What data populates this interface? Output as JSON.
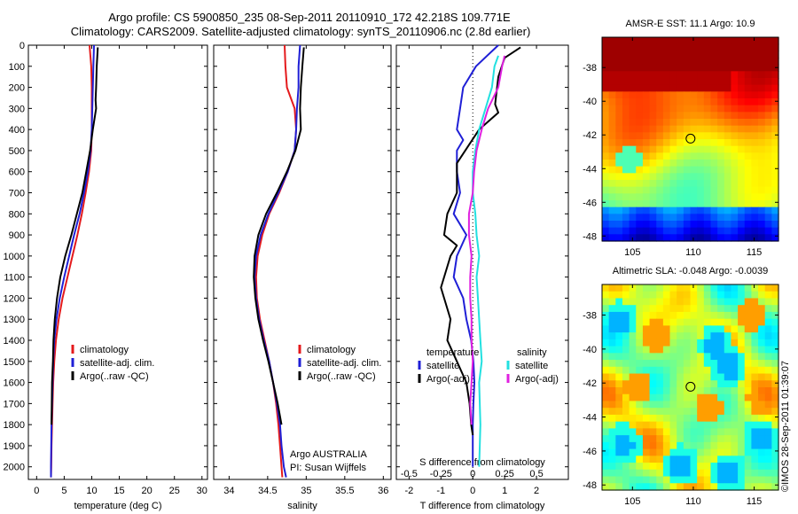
{
  "header": {
    "line1": "Argo profile: CS 5900850_235 08-Sep-2011 20110910_172 42.218S 109.771E",
    "line2": "Climatology: CARS2009. Satellite-adjusted climatology: synTS_20110906.nc (2.8d earlier)"
  },
  "stamp": "©IMOS 28-Sep-2011 01:39:07",
  "colors": {
    "climatology": "#e41a1c",
    "satellite": "#1f1fd6",
    "argo": "#000000",
    "salinity_satellite": "#22e0e0",
    "salinity_argo": "#e020e0"
  },
  "chart_data": [
    {
      "type": "line",
      "xlabel": "temperature (deg C)",
      "ylabel": "",
      "xlim": [
        -1.5,
        31
      ],
      "ylim": [
        2060,
        0
      ],
      "xticks": [
        0,
        5,
        10,
        15,
        20,
        25,
        30
      ],
      "yticks": [
        0,
        100,
        200,
        300,
        400,
        500,
        600,
        700,
        800,
        900,
        1000,
        1100,
        1200,
        1300,
        1400,
        1500,
        1600,
        1700,
        1800,
        1900,
        2000
      ],
      "legend": [
        "climatology",
        "satellite-adj. clim.",
        "Argo(..raw -QC)"
      ],
      "series": [
        {
          "name": "climatology",
          "color": "#e41a1c",
          "x": [
            9.6,
            9.9,
            10,
            10,
            10,
            9.9,
            9.5,
            8.9,
            8.2,
            7.4,
            6.5,
            5.6,
            4.7,
            4.0,
            3.5,
            3.2,
            3.0,
            2.9,
            2.8,
            2.7,
            2.65,
            2.6
          ],
          "y": [
            0,
            100,
            200,
            300,
            400,
            500,
            600,
            700,
            800,
            900,
            1000,
            1100,
            1200,
            1300,
            1400,
            1500,
            1600,
            1700,
            1800,
            1900,
            2000,
            2050
          ]
        },
        {
          "name": "satellite-adj. clim.",
          "color": "#1f1fd6",
          "x": [
            10.4,
            10.3,
            10.2,
            10.1,
            10,
            9.8,
            9.3,
            8.6,
            7.8,
            6.8,
            5.9,
            5.0,
            4.2,
            3.6,
            3.2,
            3.0,
            2.9,
            2.8,
            2.7,
            2.65,
            2.6,
            2.6
          ],
          "y": [
            0,
            100,
            200,
            300,
            400,
            500,
            600,
            700,
            800,
            900,
            1000,
            1100,
            1200,
            1300,
            1400,
            1500,
            1600,
            1700,
            1800,
            1900,
            2000,
            2050
          ]
        },
        {
          "name": "Argo(..raw -QC)",
          "color": "#000000",
          "x": [
            11.1,
            10.9,
            10.8,
            10.7,
            10.8,
            10.2,
            9.7,
            9.0,
            8.3,
            7.3,
            6.3,
            5.2,
            4.3,
            3.7,
            3.3,
            3.05,
            2.95,
            2.8,
            2.75,
            2.7
          ],
          "y": [
            10,
            100,
            200,
            260,
            300,
            400,
            500,
            600,
            700,
            800,
            900,
            1000,
            1100,
            1200,
            1300,
            1400,
            1500,
            1600,
            1700,
            1800
          ]
        }
      ]
    },
    {
      "type": "line",
      "xlabel": "salinity",
      "ylabel": "",
      "xlim": [
        33.8,
        36.1
      ],
      "ylim": [
        2060,
        0
      ],
      "xticks": [
        34,
        34.5,
        35,
        35.5,
        36
      ],
      "legend": [
        "climatology",
        "satellite-adj. clim.",
        "Argo(..raw -QC)"
      ],
      "annotations": [
        "Argo AUSTRALIA",
        "PI: Susan Wijffels"
      ],
      "series": [
        {
          "name": "climatology",
          "color": "#e41a1c",
          "x": [
            34.72,
            34.73,
            34.75,
            34.85,
            34.87,
            34.85,
            34.76,
            34.65,
            34.52,
            34.43,
            34.37,
            34.35,
            34.36,
            34.4,
            34.46,
            34.52,
            34.57,
            34.61,
            34.64,
            34.66,
            34.68,
            34.69
          ],
          "y": [
            0,
            100,
            200,
            300,
            400,
            500,
            600,
            700,
            800,
            900,
            1000,
            1100,
            1200,
            1300,
            1400,
            1500,
            1600,
            1700,
            1800,
            1900,
            2000,
            2050
          ]
        },
        {
          "name": "satellite-adj. clim.",
          "color": "#1f1fd6",
          "x": [
            34.92,
            34.9,
            34.9,
            34.88,
            34.87,
            34.85,
            34.76,
            34.64,
            34.51,
            34.41,
            34.35,
            34.33,
            34.35,
            34.39,
            34.45,
            34.52,
            34.57,
            34.62,
            34.66,
            34.68,
            34.71,
            34.74
          ],
          "y": [
            0,
            100,
            200,
            300,
            400,
            500,
            600,
            700,
            800,
            900,
            1000,
            1100,
            1200,
            1300,
            1400,
            1500,
            1600,
            1700,
            1800,
            1900,
            2000,
            2050
          ]
        },
        {
          "name": "Argo(..raw -QC)",
          "color": "#000000",
          "x": [
            34.97,
            34.95,
            34.93,
            34.92,
            34.93,
            34.86,
            34.75,
            34.62,
            34.48,
            34.38,
            34.33,
            34.32,
            34.34,
            34.38,
            34.44,
            34.51,
            34.57,
            34.63,
            34.68
          ],
          "y": [
            10,
            100,
            200,
            300,
            400,
            500,
            600,
            700,
            800,
            900,
            1000,
            1100,
            1200,
            1300,
            1400,
            1500,
            1600,
            1700,
            1800
          ]
        }
      ]
    },
    {
      "type": "line",
      "xlabel": "T difference from climatology",
      "x2label": "S difference from climatology",
      "ylabel": "",
      "xlim": [
        -2.4,
        3.0
      ],
      "x2lim": [
        -0.6,
        0.75
      ],
      "ylim": [
        2060,
        0
      ],
      "xticks": [
        -2,
        -1,
        0,
        1,
        2
      ],
      "x2ticks": [
        -0.5,
        -0.25,
        0,
        0.25,
        0.5
      ],
      "x2ticklabels": [
        "-0.5",
        "-0.25",
        "0",
        "0.25",
        "0.5"
      ],
      "legend_titles": [
        "temperature",
        "salinity"
      ],
      "legend": [
        "satellite",
        "Argo(-adj)",
        "satellite",
        "Argo(-adj)"
      ],
      "series": [
        {
          "name": "temperature satellite",
          "axis": "T",
          "color": "#1f1fd6",
          "x": [
            0.8,
            0.1,
            -0.3,
            -0.4,
            -0.5,
            -0.3,
            -0.5,
            -0.5,
            -0.4,
            -0.6,
            -0.2,
            -0.5,
            -0.6,
            -0.3,
            -0.2,
            -0.05,
            0.02,
            0.05,
            0.02,
            0.0,
            0.0
          ],
          "y": [
            0,
            100,
            200,
            300,
            400,
            450,
            500,
            600,
            700,
            800,
            900,
            1000,
            1100,
            1200,
            1300,
            1400,
            1500,
            1600,
            1700,
            1800,
            2000
          ]
        },
        {
          "name": "temperature Argo(-adj)",
          "axis": "T",
          "color": "#000000",
          "x": [
            1.5,
            1.0,
            0.8,
            0.7,
            0.8,
            0.2,
            -0.5,
            -0.5,
            -0.8,
            -0.9,
            -0.5,
            -0.7,
            -1.0,
            -0.7,
            -0.8,
            -0.5,
            -0.2,
            -0.1,
            -0.05,
            0.0
          ],
          "y": [
            10,
            60,
            150,
            280,
            320,
            400,
            560,
            700,
            800,
            900,
            950,
            1000,
            1150,
            1300,
            1400,
            1500,
            1600,
            1700,
            1800,
            1850
          ]
        },
        {
          "name": "salinity satellite",
          "axis": "S",
          "color": "#22e0e0",
          "x": [
            0.2,
            0.17,
            0.15,
            0.1,
            0.05,
            0.02,
            0.0,
            0.0,
            0.02,
            0.03,
            0.05,
            0.03,
            0.04,
            0.05,
            0.06,
            0.07,
            0.05,
            0.06,
            0.05
          ],
          "y": [
            50,
            100,
            200,
            300,
            400,
            500,
            600,
            700,
            800,
            900,
            1000,
            1100,
            1200,
            1300,
            1400,
            1500,
            1600,
            1800,
            2000
          ]
        },
        {
          "name": "salinity Argo(-adj)",
          "axis": "S",
          "color": "#e020e0",
          "x": [
            0.25,
            0.23,
            0.2,
            0.12,
            0.07,
            0.03,
            0.01,
            0.0,
            -0.03,
            -0.03,
            -0.01,
            -0.02,
            -0.02,
            -0.01,
            -0.01,
            0.0,
            -0.01,
            -0.02,
            -0.01
          ],
          "y": [
            50,
            100,
            200,
            300,
            400,
            500,
            600,
            700,
            800,
            900,
            1000,
            1100,
            1200,
            1300,
            1400,
            1500,
            1600,
            1700,
            1800
          ]
        }
      ]
    },
    {
      "type": "heatmap",
      "title": "AMSR-E SST: 11.1 Argo: 10.9",
      "xlim": [
        102.5,
        117
      ],
      "ylim": [
        -48.3,
        -36.2
      ],
      "xticks": [
        105,
        110,
        115
      ],
      "yticks": [
        -38,
        -40,
        -42,
        -44,
        -46,
        -48
      ],
      "marker": {
        "lon": 109.771,
        "lat": -42.218
      },
      "colormap": "jet"
    },
    {
      "type": "heatmap",
      "title": "Altimetric SLA: -0.048 Argo: -0.0039",
      "xlim": [
        102.5,
        117
      ],
      "ylim": [
        -48.3,
        -36.2
      ],
      "xticks": [
        105,
        110,
        115
      ],
      "yticks": [
        -38,
        -40,
        -42,
        -44,
        -46,
        -48
      ],
      "marker": {
        "lon": 109.771,
        "lat": -42.218
      },
      "colormap": "jet"
    }
  ]
}
